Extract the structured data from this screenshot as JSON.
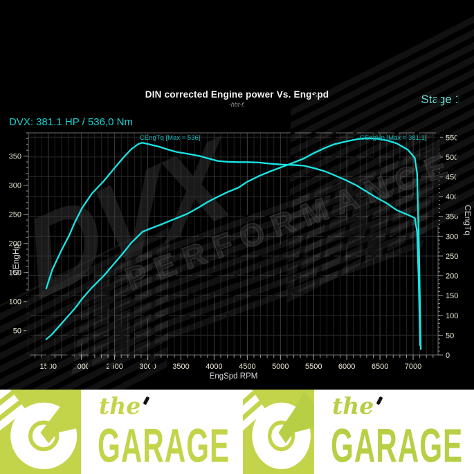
{
  "header": {
    "title": "DIN corrected Engine power Vs. Engspd",
    "subtitle": "-hbt-f,",
    "stage_label": "Stage 1",
    "result_readout": "DVX:  381.1 HP / 536,0 Nm"
  },
  "watermark": {
    "brand": "DVX",
    "tagline": "PERFORMANCE"
  },
  "colors": {
    "accent_cyan": "#16d2d2",
    "stage_cyan": "#63dcd4",
    "curve_cyan": "#17e7e7",
    "annotation_cyan": "#14baba",
    "tick_label": "#ece7d3",
    "banner_green": "#c3d44b",
    "banner_green2": "#b7cf45"
  },
  "chart_data": {
    "type": "line",
    "title": "DIN corrected Engine power Vs. Engspd",
    "subtitle": "-hbt-f,",
    "xlabel": "EngSpd RPM",
    "xlim": [
      1200,
      7375
    ],
    "x_ticks": [
      1500,
      2000,
      2500,
      3000,
      3500,
      4000,
      4500,
      5000,
      5500,
      6000,
      6500,
      7000
    ],
    "grid": true,
    "legend_position": "none",
    "left_axis": {
      "label": "CEngHp",
      "lim": [
        8,
        390
      ],
      "ticks": [
        50,
        100,
        150,
        200,
        250,
        300,
        350
      ]
    },
    "right_axis": {
      "label": "CEngTq",
      "lim": [
        0,
        561
      ],
      "ticks": [
        0,
        50,
        100,
        150,
        200,
        250,
        300,
        350,
        400,
        450,
        500,
        550
      ]
    },
    "series": [
      {
        "name": "CEngTq",
        "axis": "right",
        "unit": "Nm",
        "max": 536,
        "annotation": "CEngTq [Max = 536]",
        "points": [
          [
            1470,
            168
          ],
          [
            1560,
            215
          ],
          [
            1700,
            265
          ],
          [
            1815,
            302
          ],
          [
            1900,
            335
          ],
          [
            2013,
            372
          ],
          [
            2160,
            408
          ],
          [
            2335,
            439
          ],
          [
            2523,
            477
          ],
          [
            2640,
            500
          ],
          [
            2752,
            520
          ],
          [
            2860,
            533
          ],
          [
            2920,
            536
          ],
          [
            3050,
            531
          ],
          [
            3170,
            526
          ],
          [
            3300,
            519
          ],
          [
            3430,
            513
          ],
          [
            3600,
            508
          ],
          [
            3770,
            503
          ],
          [
            3900,
            497
          ],
          [
            4055,
            490
          ],
          [
            4200,
            488
          ],
          [
            4370,
            487
          ],
          [
            4500,
            487
          ],
          [
            4680,
            486
          ],
          [
            4850,
            483
          ],
          [
            5015,
            481
          ],
          [
            5180,
            480
          ],
          [
            5355,
            478
          ],
          [
            5500,
            472
          ],
          [
            5670,
            464
          ],
          [
            5800,
            455
          ],
          [
            5980,
            442
          ],
          [
            6150,
            428
          ],
          [
            6295,
            413
          ],
          [
            6450,
            397
          ],
          [
            6605,
            383
          ],
          [
            6750,
            366
          ],
          [
            6920,
            354
          ],
          [
            7025,
            346
          ],
          [
            7060,
            310
          ],
          [
            7085,
            180
          ],
          [
            7105,
            25
          ]
        ]
      },
      {
        "name": "CEngHp",
        "axis": "left",
        "unit": "HP",
        "max": 381.1,
        "annotation": "CEngHp [Max = 381.1]",
        "points": [
          [
            1470,
            35
          ],
          [
            1560,
            44
          ],
          [
            1700,
            62
          ],
          [
            1815,
            77
          ],
          [
            1900,
            88
          ],
          [
            2013,
            105
          ],
          [
            2160,
            124
          ],
          [
            2335,
            144
          ],
          [
            2523,
            169
          ],
          [
            2640,
            185
          ],
          [
            2752,
            201
          ],
          [
            2860,
            213
          ],
          [
            2920,
            220
          ],
          [
            3050,
            226
          ],
          [
            3170,
            231
          ],
          [
            3300,
            237
          ],
          [
            3430,
            243
          ],
          [
            3600,
            251
          ],
          [
            3770,
            262
          ],
          [
            3900,
            271
          ],
          [
            4055,
            280
          ],
          [
            4200,
            288
          ],
          [
            4370,
            296
          ],
          [
            4500,
            306
          ],
          [
            4680,
            316
          ],
          [
            4850,
            324
          ],
          [
            5015,
            331
          ],
          [
            5180,
            338
          ],
          [
            5355,
            346
          ],
          [
            5500,
            355
          ],
          [
            5670,
            364
          ],
          [
            5800,
            370
          ],
          [
            5980,
            375
          ],
          [
            6150,
            379
          ],
          [
            6295,
            381
          ],
          [
            6450,
            380
          ],
          [
            6605,
            377
          ],
          [
            6750,
            372
          ],
          [
            6920,
            361
          ],
          [
            7025,
            347
          ],
          [
            7060,
            320
          ],
          [
            7090,
            180
          ],
          [
            7115,
            18
          ]
        ]
      }
    ]
  },
  "banner": {
    "script_word": "the",
    "main_word": "GARAGE"
  }
}
